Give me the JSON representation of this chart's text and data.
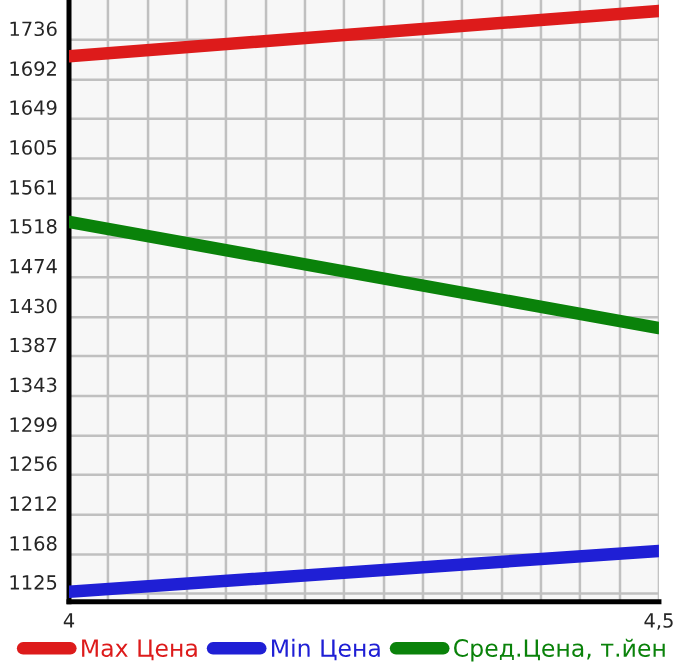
{
  "chart_data": {
    "type": "line",
    "x": [
      4,
      4.5
    ],
    "series": [
      {
        "name": "Max Цена",
        "color": "#dd1b1b",
        "values": [
          1718,
          1768
        ]
      },
      {
        "name": "Min Цена",
        "color": "#1f1fd5",
        "values": [
          1127,
          1172
        ]
      },
      {
        "name": "Сред.Цена, т.йен",
        "color": "#0a820a",
        "values": [
          1535,
          1418
        ]
      }
    ],
    "xlim": [
      4,
      4.5
    ],
    "xticks": [
      4,
      {
        "value": 4.033,
        "label": null
      },
      {
        "value": 4.067,
        "label": null
      },
      {
        "value": 4.1,
        "label": null
      },
      {
        "value": 4.133,
        "label": null
      },
      {
        "value": 4.167,
        "label": null
      },
      {
        "value": 4.2,
        "label": null
      },
      {
        "value": 4.233,
        "label": null
      },
      {
        "value": 4.267,
        "label": null
      },
      {
        "value": 4.3,
        "label": null
      },
      {
        "value": 4.333,
        "label": null
      },
      {
        "value": 4.367,
        "label": null
      },
      {
        "value": 4.4,
        "label": null
      },
      {
        "value": 4.433,
        "label": null
      },
      {
        "value": 4.467,
        "label": null
      },
      {
        "value": 4.5,
        "label": "4,5"
      }
    ],
    "ylim": [
      1116,
      1780
    ],
    "yticks": [
      1125,
      1168,
      1212,
      1256,
      1299,
      1343,
      1387,
      1430,
      1474,
      1518,
      1561,
      1605,
      1649,
      1692,
      1736
    ],
    "grid": true,
    "legend": "bottom",
    "marker": "none",
    "line_style": "solid"
  }
}
